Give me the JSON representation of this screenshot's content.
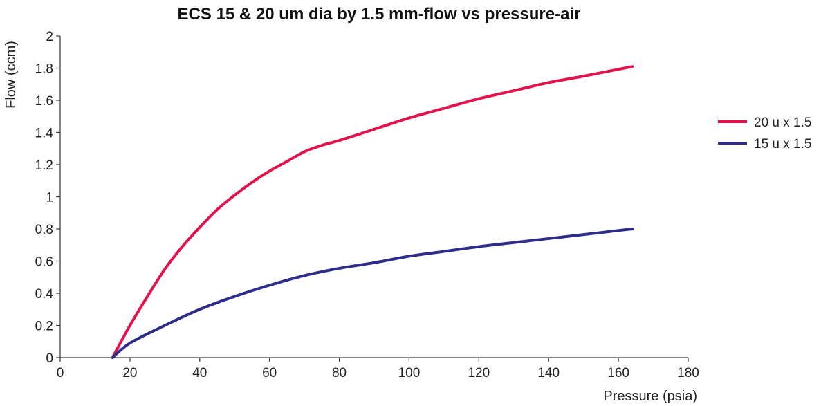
{
  "chart_data": {
    "type": "line",
    "title": "ECS 15 & 20 um dia by 1.5 mm-flow vs pressure-air",
    "xlabel": "Pressure (psia)",
    "ylabel": "Flow (ccm)",
    "xlim": [
      0,
      180
    ],
    "ylim": [
      0,
      2
    ],
    "x_ticks": [
      0,
      20,
      40,
      60,
      80,
      100,
      120,
      140,
      160,
      180
    ],
    "y_ticks": [
      0,
      0.2,
      0.4,
      0.6,
      0.8,
      1,
      1.2,
      1.4,
      1.6,
      1.8,
      2
    ],
    "x_tick_labels": [
      "0",
      "20",
      "40",
      "60",
      "80",
      "100",
      "120",
      "140",
      "160",
      "180"
    ],
    "y_tick_labels": [
      "0",
      "0.2",
      "0.4",
      "0.6",
      "0.8",
      "1",
      "1.2",
      "1.4",
      "1.6",
      "1.8",
      "2"
    ],
    "grid": false,
    "legend_position": "right",
    "series": [
      {
        "name": "20 u x 1.5",
        "color": "#e3124b",
        "x": [
          15,
          20,
          25,
          30,
          35,
          40,
          45,
          50,
          55,
          60,
          65,
          70,
          75,
          80,
          90,
          100,
          110,
          120,
          130,
          140,
          150,
          164
        ],
        "y": [
          0,
          0.2,
          0.38,
          0.55,
          0.69,
          0.81,
          0.92,
          1.01,
          1.09,
          1.16,
          1.22,
          1.28,
          1.32,
          1.35,
          1.42,
          1.49,
          1.55,
          1.61,
          1.66,
          1.71,
          1.75,
          1.81
        ]
      },
      {
        "name": "15 u x 1.5",
        "color": "#2e2c8a",
        "x": [
          15,
          20,
          30,
          40,
          50,
          60,
          70,
          80,
          90,
          100,
          110,
          120,
          130,
          140,
          150,
          164
        ],
        "y": [
          0,
          0.09,
          0.2,
          0.3,
          0.38,
          0.45,
          0.51,
          0.555,
          0.59,
          0.63,
          0.66,
          0.69,
          0.715,
          0.74,
          0.765,
          0.8
        ]
      }
    ]
  }
}
